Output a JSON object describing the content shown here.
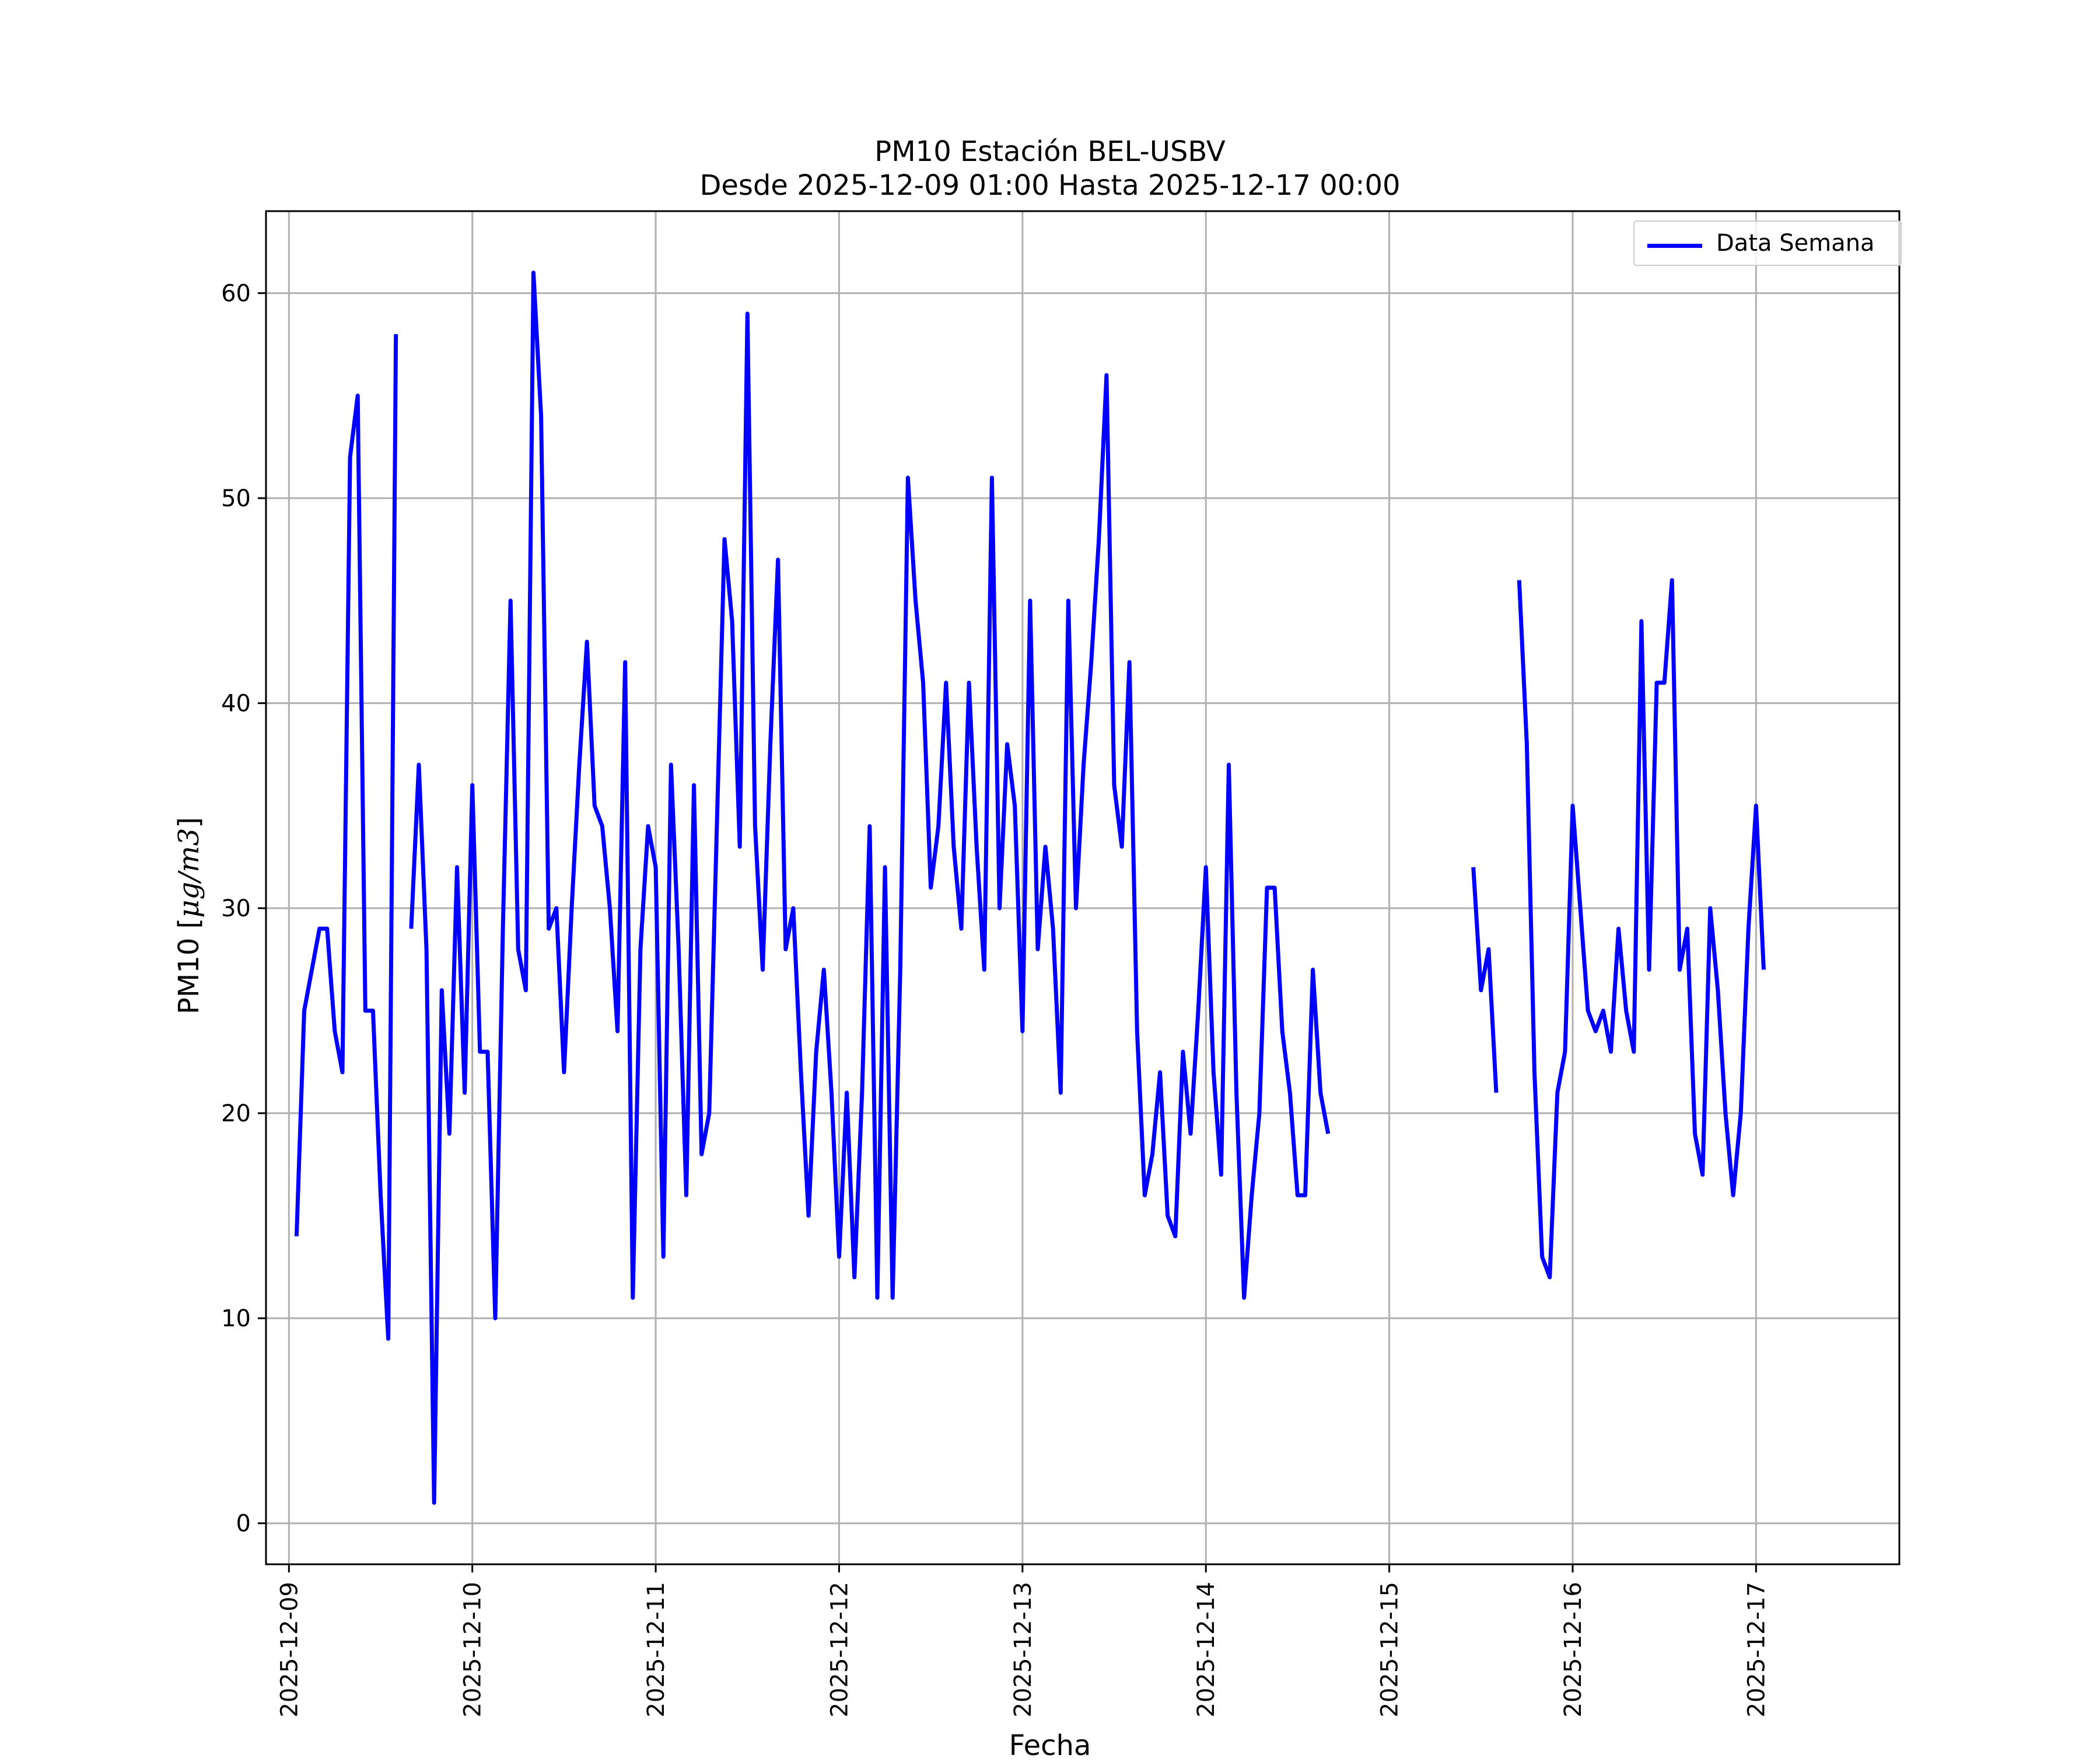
{
  "chart_data": {
    "type": "line",
    "title": "PM10 Estación BEL-USBV",
    "subtitle": "Desde 2025-12-09 01:00 Hasta 2025-12-17 00:00",
    "xlabel": "Fecha",
    "ylabel_text": "PM10 [",
    "ylabel_unit": "μg/m3",
    "ylabel_close": "]",
    "xlim": [
      "2025-12-08 21:00",
      "2025-12-17 18:45"
    ],
    "ylim": [
      -2,
      64
    ],
    "grid": true,
    "legend_position": "top-right",
    "x_tick_labels": [
      "2025-12-09",
      "2025-12-10",
      "2025-12-11",
      "2025-12-12",
      "2025-12-13",
      "2025-12-14",
      "2025-12-15",
      "2025-12-16",
      "2025-12-17"
    ],
    "y_ticks": [
      0,
      10,
      20,
      30,
      40,
      50,
      60
    ],
    "series": [
      {
        "name": "Data Semana",
        "color": "#0000ff",
        "start": "2025-12-09 01:00",
        "step_hours": 1,
        "values": [
          14,
          25,
          27,
          29,
          29,
          24,
          22,
          52,
          55,
          25,
          25,
          16,
          9,
          58,
          null,
          29,
          37,
          28,
          1,
          26,
          19,
          32,
          21,
          36,
          23,
          23,
          10,
          29,
          45,
          28,
          26,
          61,
          54,
          29,
          30,
          22,
          30,
          37,
          43,
          35,
          34,
          30,
          24,
          42,
          11,
          28,
          34,
          32,
          13,
          37,
          28,
          16,
          36,
          18,
          20,
          34,
          48,
          44,
          33,
          59,
          34,
          27,
          38,
          47,
          28,
          30,
          22,
          15,
          23,
          27,
          21,
          13,
          21,
          12,
          21,
          34,
          11,
          32,
          11,
          27,
          51,
          45,
          41,
          31,
          34,
          41,
          33,
          29,
          41,
          33,
          27,
          51,
          30,
          38,
          35,
          24,
          45,
          28,
          33,
          29,
          21,
          45,
          30,
          37,
          42,
          48,
          56,
          36,
          33,
          42,
          24,
          16,
          18,
          22,
          15,
          14,
          23,
          19,
          25,
          32,
          22,
          17,
          37,
          21,
          11,
          16,
          20,
          31,
          31,
          24,
          21,
          16,
          16,
          27,
          21,
          19,
          null,
          null,
          null,
          null,
          null,
          null,
          null,
          null,
          null,
          null,
          null,
          null,
          null,
          null,
          null,
          null,
          null,
          null,
          32,
          26,
          28,
          21,
          null,
          null,
          46,
          38,
          22,
          13,
          12,
          21,
          23,
          35,
          30,
          25,
          24,
          25,
          23,
          29,
          25,
          23,
          44,
          27,
          41,
          41,
          46,
          27,
          29,
          19,
          17,
          30,
          26,
          20,
          16,
          20,
          29,
          35,
          27
        ]
      }
    ]
  },
  "legend": {
    "label": "Data Semana"
  }
}
